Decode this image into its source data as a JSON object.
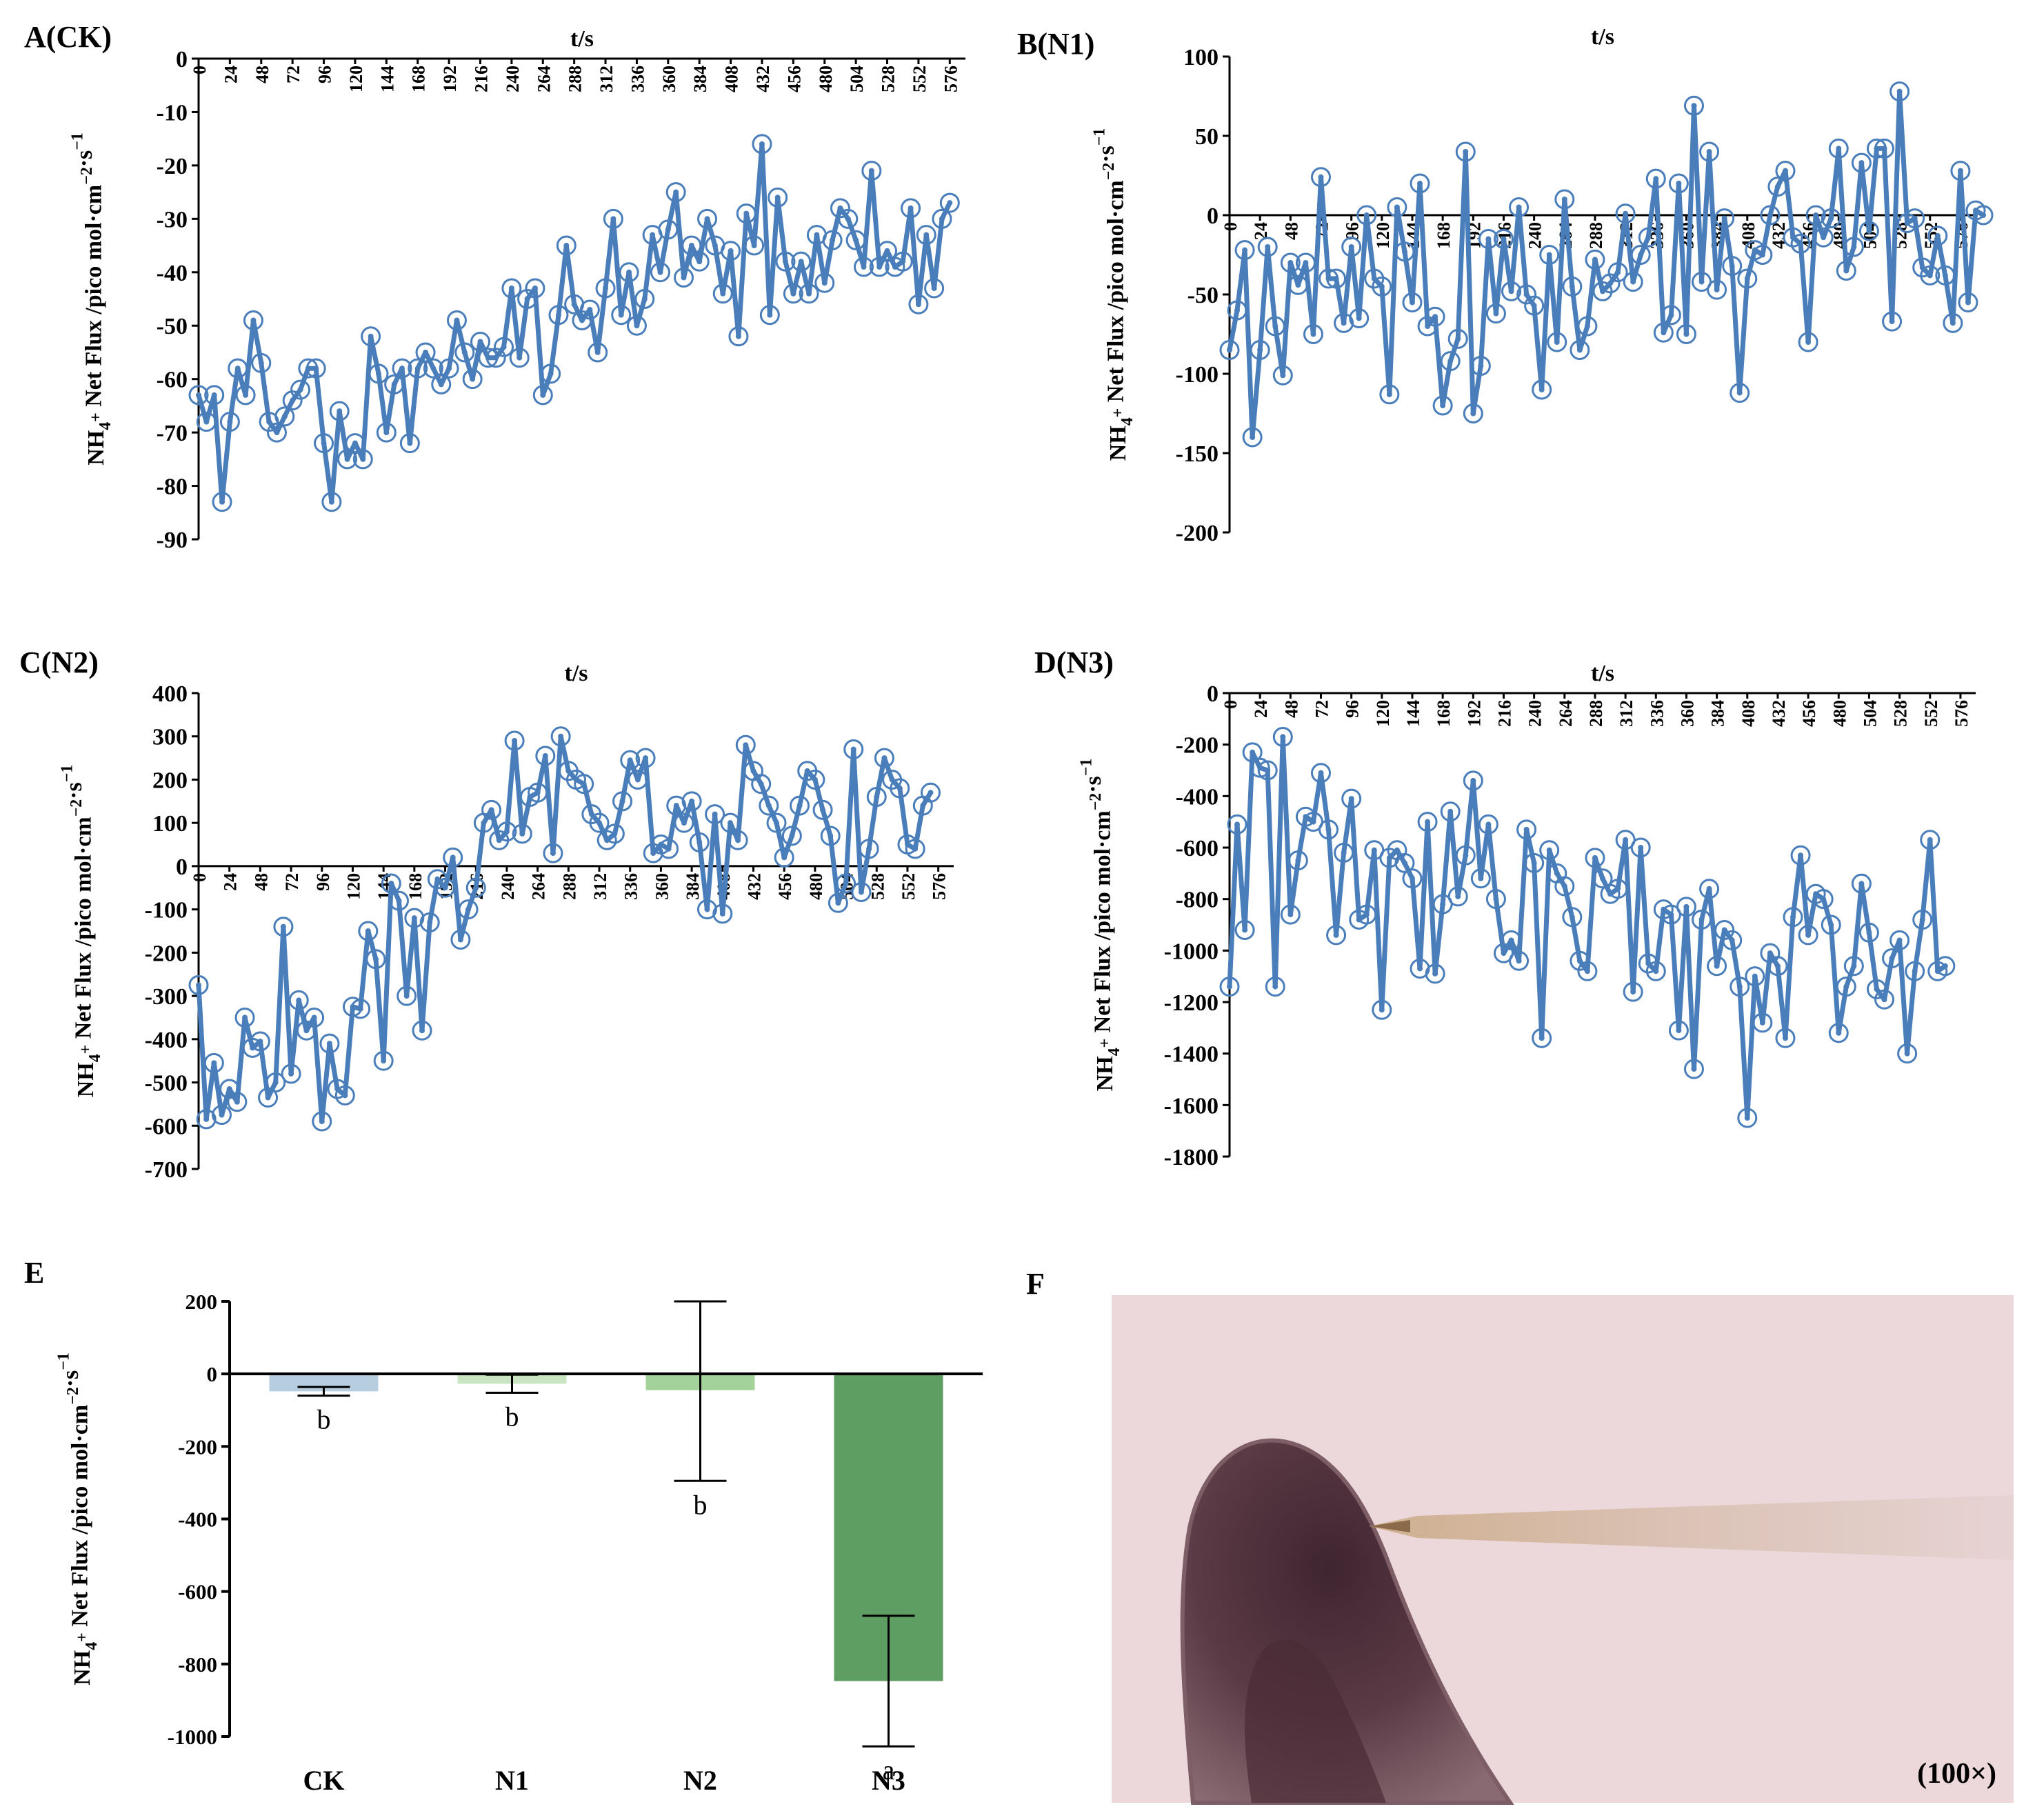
{
  "chart_data": [
    {
      "panel_label": "A(CK)",
      "type": "line",
      "xlabel": "t/s",
      "ylabel": "NH4+ Net Flux /pico mol·cm−2·s−1",
      "ylim": [
        -90,
        0
      ],
      "yticks": [
        0,
        -10,
        -20,
        -30,
        -40,
        -50,
        -60,
        -70,
        -80,
        -90
      ],
      "xticks": [
        "0",
        "24",
        "48",
        "72",
        "96",
        "120",
        "144",
        "168",
        "192",
        "216",
        "240",
        "264",
        "288",
        "312",
        "336",
        "360",
        "384",
        "408",
        "432",
        "456",
        "480",
        "504",
        "528",
        "552",
        "576"
      ],
      "xlim": [
        0,
        588
      ],
      "x_step": 6,
      "color": "#4a7ebb",
      "values": [
        -63,
        -68,
        -63,
        -83,
        -68,
        -58,
        -63,
        -49,
        -57,
        -68,
        -70,
        -67,
        -64,
        -62,
        -58,
        -58,
        -72,
        -83,
        -66,
        -75,
        -72,
        -75,
        -52,
        -59,
        -70,
        -61,
        -58,
        -72,
        -58,
        -55,
        -58,
        -61,
        -58,
        -49,
        -55,
        -60,
        -53,
        -56,
        -56,
        -54,
        -43,
        -56,
        -45,
        -43,
        -63,
        -59,
        -48,
        -35,
        -46,
        -49,
        -47,
        -55,
        -43,
        -30,
        -48,
        -40,
        -50,
        -45,
        -33,
        -40,
        -32,
        -25,
        -41,
        -35,
        -38,
        -30,
        -35,
        -44,
        -36,
        -52,
        -29,
        -35,
        -16,
        -48,
        -26,
        -38,
        -44,
        -38,
        -44,
        -33,
        -42,
        -34,
        -28,
        -30,
        -34,
        -39,
        -21,
        -39,
        -36,
        -39,
        -38,
        -28,
        -46,
        -33,
        -43,
        -30,
        -27
      ]
    },
    {
      "panel_label": "B(N1)",
      "type": "line",
      "xlabel": "t/s",
      "ylabel": "NH4+ Net Flux /pico mol·cm−2·s−1",
      "ylim": [
        -200,
        100
      ],
      "yticks": [
        100,
        50,
        0,
        -50,
        -100,
        -150,
        -200
      ],
      "xticks": [
        "0",
        "24",
        "48",
        "72",
        "96",
        "120",
        "144",
        "168",
        "192",
        "216",
        "240",
        "264",
        "288",
        "312",
        "336",
        "360",
        "384",
        "408",
        "432",
        "456",
        "480",
        "504",
        "528",
        "552",
        "576"
      ],
      "xlim": [
        0,
        588
      ],
      "x_step": 6,
      "color": "#4a7ebb",
      "values": [
        -85,
        -60,
        -22,
        -140,
        -85,
        -20,
        -70,
        -101,
        -30,
        -44,
        -30,
        -75,
        24,
        -40,
        -40,
        -68,
        -20,
        -65,
        0,
        -40,
        -45,
        -113,
        5,
        -23,
        -55,
        20,
        -70,
        -64,
        -120,
        -92,
        -78,
        40,
        -125,
        -95,
        -15,
        -62,
        -15,
        -48,
        5,
        -50,
        -57,
        -110,
        -25,
        -80,
        10,
        -45,
        -85,
        -70,
        -28,
        -48,
        -43,
        -36,
        1,
        -42,
        -25,
        -14,
        23,
        -74,
        -63,
        20,
        -75,
        69,
        -42,
        40,
        -47,
        -2,
        -32,
        -112,
        -40,
        -22,
        -25,
        0,
        18,
        28,
        -14,
        -18,
        -80,
        0,
        -14,
        -2,
        42,
        -35,
        -20,
        33,
        -10,
        42,
        42,
        -67,
        78,
        -5,
        -2,
        -33,
        -38,
        -13,
        -38,
        -68,
        28,
        -55,
        3,
        0
      ]
    },
    {
      "panel_label": "C(N2)",
      "type": "line",
      "xlabel": "t/s",
      "ylabel": "NH4+ Net Flux /pico mol·cm−2·s−1",
      "ylim": [
        -700,
        400
      ],
      "yticks": [
        400,
        300,
        200,
        100,
        0,
        -100,
        -200,
        -300,
        -400,
        -500,
        -600,
        -700
      ],
      "xticks": [
        "0",
        "24",
        "48",
        "72",
        "96",
        "120",
        "144",
        "168",
        "192",
        "216",
        "240",
        "264",
        "288",
        "312",
        "336",
        "360",
        "384",
        "408",
        "432",
        "456",
        "480",
        "504",
        "528",
        "552",
        "576"
      ],
      "xlim": [
        0,
        588
      ],
      "x_step": 6,
      "color": "#4a7ebb",
      "values": [
        -275,
        -585,
        -455,
        -575,
        -515,
        -545,
        -350,
        -420,
        -405,
        -535,
        -500,
        -140,
        -480,
        -310,
        -380,
        -350,
        -590,
        -410,
        -515,
        -530,
        -325,
        -330,
        -150,
        -215,
        -450,
        -40,
        -80,
        -300,
        -120,
        -380,
        -130,
        -30,
        -50,
        20,
        -170,
        -100,
        -50,
        100,
        130,
        60,
        80,
        290,
        75,
        160,
        170,
        255,
        30,
        300,
        220,
        200,
        190,
        120,
        100,
        60,
        75,
        150,
        245,
        200,
        250,
        30,
        50,
        40,
        140,
        100,
        150,
        55,
        -100,
        120,
        -110,
        100,
        60,
        280,
        220,
        190,
        140,
        100,
        20,
        70,
        140,
        220,
        200,
        130,
        70,
        -85,
        -40,
        270,
        -60,
        40,
        160,
        250,
        200,
        180,
        50,
        40,
        140,
        170
      ]
    },
    {
      "panel_label": "D(N3)",
      "type": "line",
      "xlabel": "t/s",
      "ylabel": "NH4+ Net Flux /pico mol·cm−2·s−1",
      "ylim": [
        -1800,
        0
      ],
      "yticks": [
        0,
        -200,
        -400,
        -600,
        -800,
        -1000,
        -1200,
        -1400,
        -1600,
        -1800
      ],
      "xticks": [
        "0",
        "24",
        "48",
        "72",
        "96",
        "120",
        "144",
        "168",
        "192",
        "216",
        "240",
        "264",
        "288",
        "312",
        "336",
        "360",
        "384",
        "408",
        "432",
        "456",
        "480",
        "504",
        "528",
        "552",
        "576"
      ],
      "xlim": [
        0,
        588
      ],
      "x_step": 6,
      "color": "#4a7ebb",
      "values": [
        -1140,
        -510,
        -920,
        -230,
        -290,
        -300,
        -1140,
        -170,
        -860,
        -650,
        -480,
        -500,
        -310,
        -530,
        -940,
        -620,
        -410,
        -880,
        -860,
        -610,
        -1230,
        -640,
        -610,
        -660,
        -720,
        -1070,
        -500,
        -1090,
        -820,
        -460,
        -790,
        -630,
        -340,
        -720,
        -510,
        -800,
        -1010,
        -960,
        -1040,
        -530,
        -660,
        -1340,
        -610,
        -700,
        -750,
        -870,
        -1040,
        -1080,
        -640,
        -720,
        -780,
        -760,
        -570,
        -1160,
        -600,
        -1050,
        -1080,
        -840,
        -860,
        -1310,
        -830,
        -1460,
        -880,
        -760,
        -1060,
        -920,
        -960,
        -1140,
        -1650,
        -1100,
        -1280,
        -1010,
        -1060,
        -1340,
        -870,
        -630,
        -940,
        -780,
        -800,
        -900,
        -1320,
        -1140,
        -1060,
        -740,
        -930,
        -1150,
        -1190,
        -1030,
        -960,
        -1400,
        -1080,
        -880,
        -570,
        -1080,
        -1060
      ]
    },
    {
      "panel_label": "E",
      "type": "bar",
      "ylabel": "NH4+ Net Flux /pico mol·cm−2·s−1",
      "ylim": [
        -1000,
        200
      ],
      "yticks": [
        200,
        0,
        -200,
        -400,
        -600,
        -800,
        -1000
      ],
      "categories": [
        "CK",
        "N1",
        "N2",
        "N3"
      ],
      "values": [
        -48,
        -27,
        -45,
        -847
      ],
      "error_lower": [
        12,
        25,
        250,
        180
      ],
      "error_upper": [
        12,
        25,
        245,
        180
      ],
      "significance": [
        "b",
        "b",
        "b",
        "a"
      ],
      "colors": [
        "#b7cde0",
        "#c9e4c0",
        "#a3d29a",
        "#5f9e62"
      ]
    }
  ],
  "photo": {
    "panel_label": "F",
    "magnification": "(100×)"
  }
}
